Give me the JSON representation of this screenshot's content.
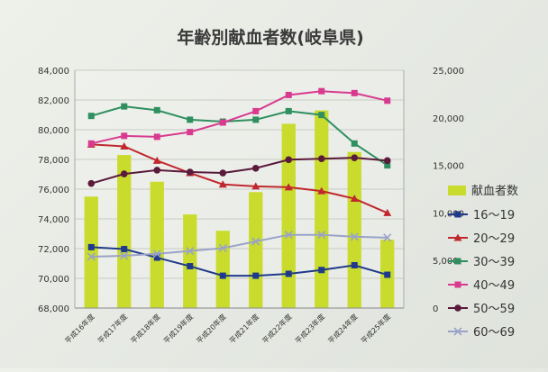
{
  "chart_data": {
    "type": "bar+line",
    "title": "年齢別献血者数(岐阜県)",
    "categories": [
      "平成16年度",
      "平成17年度",
      "平成18年度",
      "平成19年度",
      "平成20年度",
      "平成21年度",
      "平成22年度",
      "平成23年度",
      "平成24年度",
      "平成25年度"
    ],
    "left_axis": {
      "ylim": [
        68000,
        84000
      ],
      "ticks": [
        "68,000",
        "70,000",
        "72,000",
        "74,000",
        "76,000",
        "78,000",
        "80,000",
        "82,000",
        "84,000"
      ]
    },
    "right_axis": {
      "ylim": [
        0,
        25000
      ],
      "ticks": [
        "0",
        "5,000",
        "10,000",
        "15,000",
        "20,000",
        "25,000"
      ]
    },
    "bars": {
      "name": "献血者数",
      "axis": "left",
      "color": "#c9dc2e",
      "values": [
        75500,
        78300,
        76500,
        74300,
        73200,
        75800,
        80400,
        81300,
        78500,
        72600
      ]
    },
    "series": [
      {
        "name": "16～19",
        "axis": "right",
        "color": "#1f3a8a",
        "marker": "square",
        "values": [
          6400,
          6200,
          5300,
          4400,
          3400,
          3400,
          3600,
          4000,
          4500,
          3500
        ]
      },
      {
        "name": "20～29",
        "axis": "right",
        "color": "#c0282e",
        "marker": "triangle",
        "values": [
          17200,
          17000,
          15500,
          14200,
          13000,
          12800,
          12700,
          12300,
          11500,
          10000
        ]
      },
      {
        "name": "30～39",
        "axis": "right",
        "color": "#2f8f5f",
        "marker": "square",
        "values": [
          20200,
          21200,
          20800,
          19800,
          19600,
          19800,
          20700,
          20300,
          17300,
          15000
        ]
      },
      {
        "name": "40～49",
        "axis": "right",
        "color": "#d83a8f",
        "marker": "square",
        "values": [
          17300,
          18100,
          18000,
          18500,
          19500,
          20700,
          22400,
          22800,
          22600,
          21800
        ]
      },
      {
        "name": "50～59",
        "axis": "right",
        "color": "#5a1a3a",
        "marker": "circle",
        "values": [
          13100,
          14100,
          14500,
          14300,
          14200,
          14700,
          15600,
          15700,
          15800,
          15500
        ]
      },
      {
        "name": "60～69",
        "axis": "right",
        "color": "#9aa2c8",
        "marker": "cross",
        "values": [
          5400,
          5500,
          5700,
          6000,
          6300,
          7000,
          7700,
          7700,
          7500,
          7400
        ]
      }
    ],
    "legend_position": "right",
    "grid": true
  }
}
